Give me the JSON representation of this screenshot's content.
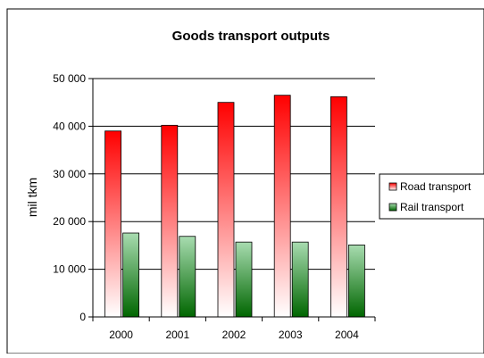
{
  "chart_data": {
    "type": "bar",
    "title": "Goods transport outputs",
    "xlabel": "",
    "ylabel": "mil tkm",
    "categories": [
      "2000",
      "2001",
      "2002",
      "2003",
      "2004"
    ],
    "series": [
      {
        "name": "Road transport",
        "values": [
          39000,
          40200,
          45000,
          46500,
          46200
        ],
        "color_top": "#ff0000",
        "color_bottom": "#ffffff"
      },
      {
        "name": "Rail transport",
        "values": [
          17600,
          16900,
          15700,
          15700,
          15100
        ],
        "color_top": "#a8dcb0",
        "color_bottom": "#006600"
      }
    ],
    "ylim": [
      0,
      50000
    ],
    "ytick_values": [
      0,
      10000,
      20000,
      30000,
      40000,
      50000
    ],
    "ytick_labels": [
      "0",
      "10 000",
      "20 000",
      "30 000",
      "40 000",
      "50 000"
    ],
    "grid": true,
    "legend_position": "right"
  }
}
